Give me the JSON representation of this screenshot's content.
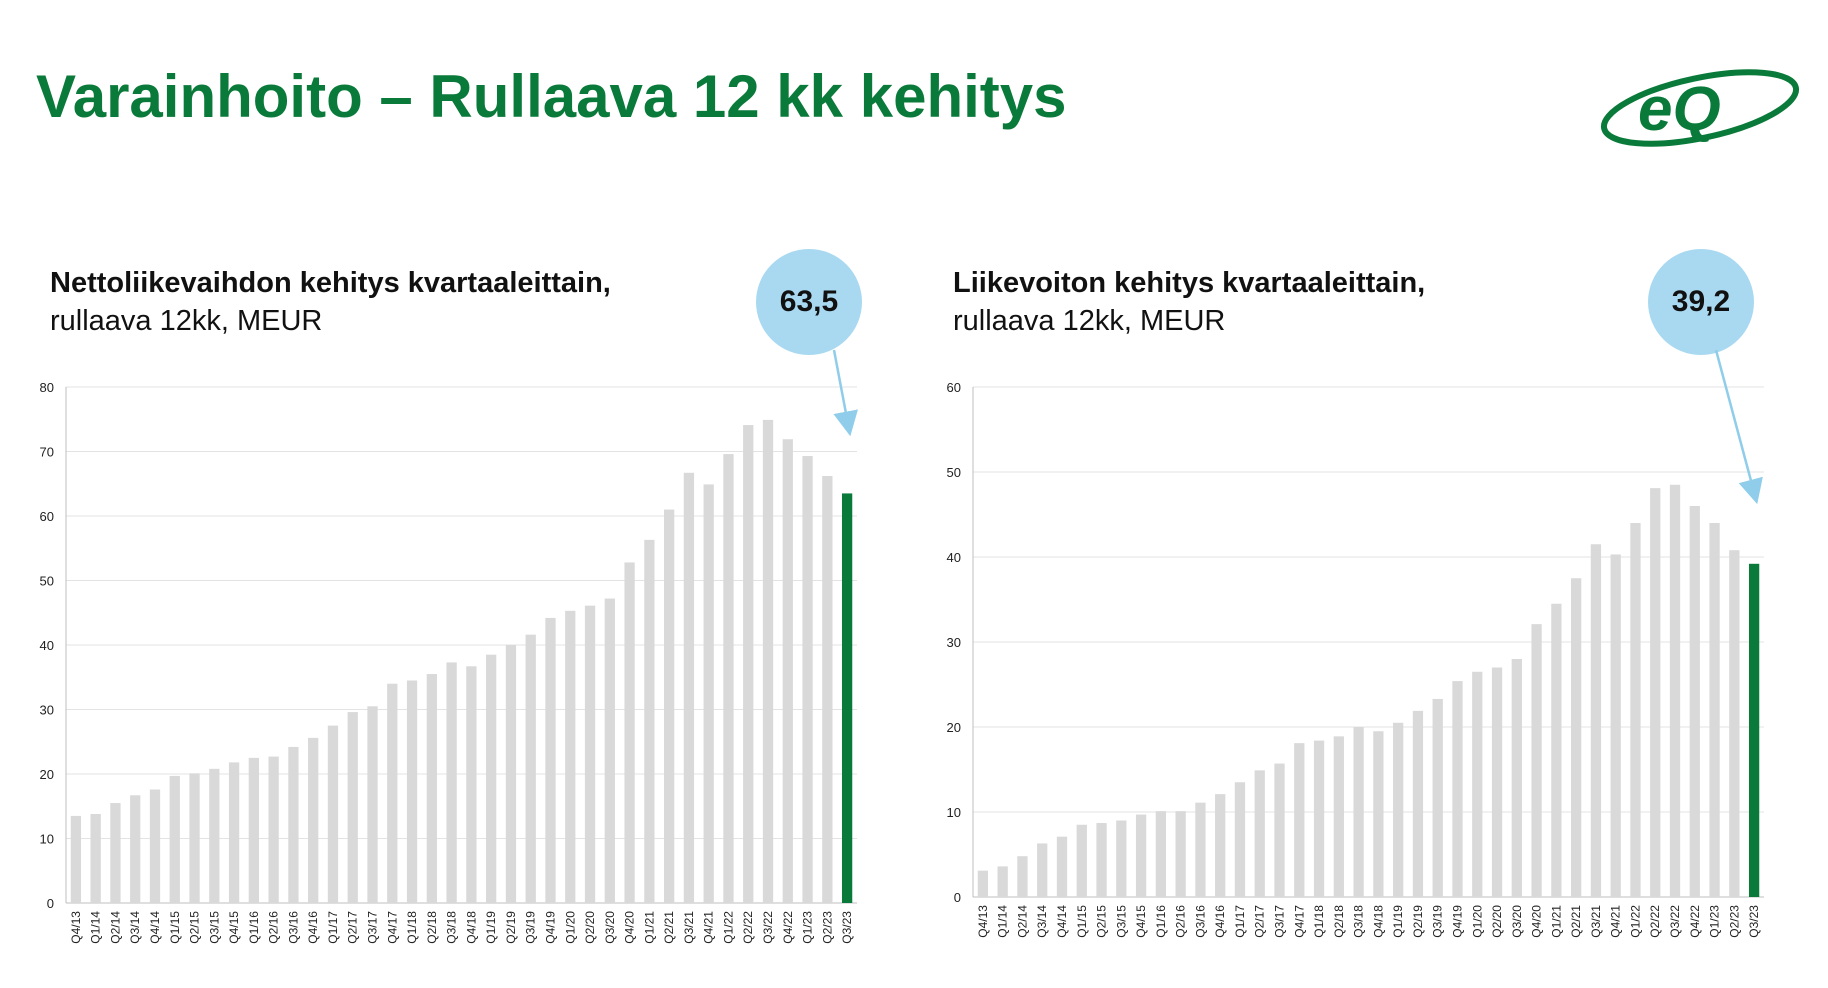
{
  "page": {
    "title": "Varainhoito – Rullaava 12 kk kehitys",
    "logo_text": "eQ",
    "colors": {
      "title": "#0a7a3a",
      "bar": "#d9d9d9",
      "highlight_bar": "#0a7a3a",
      "bubble": "#a9d9f1",
      "arrow": "#8fcdea"
    }
  },
  "chart_data": [
    {
      "type": "bar",
      "title_line1": "Nettoliikevaihdon kehitys kvartaaleittain,",
      "title_line2": "rullaava 12kk, MEUR",
      "callout": "63,5",
      "ylim": [
        0,
        80
      ],
      "yticks": [
        0,
        10,
        20,
        30,
        40,
        50,
        60,
        70,
        80
      ],
      "grid": true,
      "highlight_last": true,
      "categories": [
        "Q4/13",
        "Q1/14",
        "Q2/14",
        "Q3/14",
        "Q4/14",
        "Q1/15",
        "Q2/15",
        "Q3/15",
        "Q4/15",
        "Q1/16",
        "Q2/16",
        "Q3/16",
        "Q4/16",
        "Q1/17",
        "Q2/17",
        "Q3/17",
        "Q4/17",
        "Q1/18",
        "Q2/18",
        "Q3/18",
        "Q4/18",
        "Q1/19",
        "Q2/19",
        "Q3/19",
        "Q4/19",
        "Q1/20",
        "Q2/20",
        "Q3/20",
        "Q4/20",
        "Q1/21",
        "Q2/21",
        "Q3/21",
        "Q4/21",
        "Q1/22",
        "Q2/22",
        "Q3/22",
        "Q4/22",
        "Q1/23",
        "Q2/23",
        "Q3/23"
      ],
      "values": [
        13.5,
        13.8,
        15.5,
        16.7,
        17.6,
        19.7,
        20.1,
        20.8,
        21.8,
        22.5,
        22.7,
        24.2,
        25.6,
        27.5,
        29.6,
        30.5,
        34.0,
        34.5,
        35.5,
        37.3,
        36.7,
        38.5,
        40.0,
        41.6,
        44.2,
        45.3,
        46.1,
        47.2,
        52.8,
        56.3,
        61.0,
        66.7,
        64.9,
        69.6,
        74.1,
        74.9,
        71.9,
        69.3,
        66.2,
        63.5
      ]
    },
    {
      "type": "bar",
      "title_line1": "Liikevoiton kehitys kvartaaleittain,",
      "title_line2": "rullaava 12kk, MEUR",
      "callout": "39,2",
      "ylim": [
        0,
        60
      ],
      "yticks": [
        0,
        10,
        20,
        30,
        40,
        50,
        60
      ],
      "grid": true,
      "highlight_last": true,
      "categories": [
        "Q4/13",
        "Q1/14",
        "Q2/14",
        "Q3/14",
        "Q4/14",
        "Q1/15",
        "Q2/15",
        "Q3/15",
        "Q4/15",
        "Q1/16",
        "Q2/16",
        "Q3/16",
        "Q4/16",
        "Q1/17",
        "Q2/17",
        "Q3/17",
        "Q4/17",
        "Q1/18",
        "Q2/18",
        "Q3/18",
        "Q4/18",
        "Q1/19",
        "Q2/19",
        "Q3/19",
        "Q4/19",
        "Q1/20",
        "Q2/20",
        "Q3/20",
        "Q4/20",
        "Q1/21",
        "Q2/21",
        "Q3/21",
        "Q4/21",
        "Q1/22",
        "Q2/22",
        "Q3/22",
        "Q4/22",
        "Q1/23",
        "Q2/23",
        "Q3/23"
      ],
      "values": [
        3.1,
        3.6,
        4.8,
        6.3,
        7.1,
        8.5,
        8.7,
        9.0,
        9.7,
        10.1,
        10.1,
        11.1,
        12.1,
        13.5,
        14.9,
        15.7,
        18.1,
        18.4,
        18.9,
        20.0,
        19.5,
        20.5,
        21.9,
        23.3,
        25.4,
        26.5,
        27.0,
        28.0,
        32.1,
        34.5,
        37.5,
        41.5,
        40.3,
        44.0,
        48.1,
        48.5,
        46.0,
        44.0,
        40.8,
        39.2
      ]
    }
  ]
}
